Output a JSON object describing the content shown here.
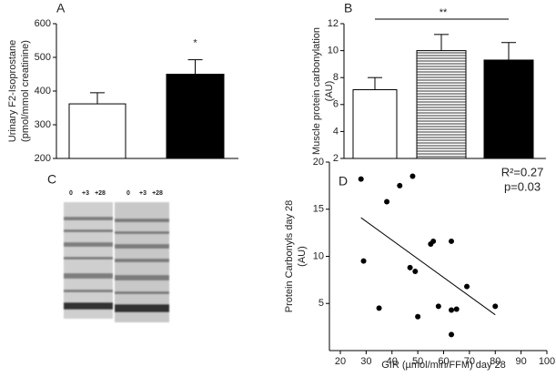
{
  "chart_data": [
    {
      "type": "bar",
      "panel_label": "A",
      "ylabel": [
        "Urinary F2-Isoprostane",
        "(pmol/mmol creatinine)"
      ],
      "categories": [
        null,
        null
      ],
      "values": [
        362,
        450
      ],
      "errors": [
        33,
        43
      ],
      "colors": [
        "#ffffff",
        "#000000"
      ],
      "patterns": [
        "none",
        "none"
      ],
      "significance": "*",
      "ylim": [
        200,
        600
      ],
      "yticks": [
        200,
        300,
        400,
        500,
        600
      ]
    },
    {
      "type": "bar",
      "panel_label": "B",
      "ylabel": [
        "Muscle protein carbonylation",
        "(AU)"
      ],
      "categories": [
        null,
        null,
        null
      ],
      "values": [
        7.1,
        10.0,
        9.3
      ],
      "errors": [
        0.9,
        1.2,
        1.3
      ],
      "colors": [
        "#ffffff",
        "#ffffff",
        "#000000"
      ],
      "patterns": [
        "none",
        "horizontal-lines",
        "none"
      ],
      "significance": "**",
      "ylim": [
        2,
        12
      ],
      "yticks": [
        2,
        4,
        6,
        8,
        10,
        12
      ]
    },
    {
      "type": "scatter",
      "panel_label": "D",
      "xlabel": "GIR (µmol/min/FFM) day 28",
      "ylabel": [
        "Protein Carbonyls day 28",
        "(AU)"
      ],
      "x": [
        28,
        29,
        35,
        38,
        43,
        47,
        48,
        49,
        50,
        55,
        56,
        58,
        63,
        63,
        63,
        65,
        69,
        80
      ],
      "y": [
        18.2,
        9.5,
        4.5,
        15.8,
        17.5,
        8.8,
        18.5,
        8.4,
        3.6,
        11.3,
        11.6,
        4.7,
        11.6,
        1.7,
        4.3,
        4.4,
        6.8,
        4.7
      ],
      "color": "#000000",
      "fit_line": {
        "x": [
          28,
          80
        ],
        "y": [
          14.1,
          3.8
        ]
      },
      "annotations": [
        "R²=0.27",
        "p=0.03"
      ],
      "xlim": [
        20,
        100
      ],
      "xticks": [
        20,
        30,
        40,
        50,
        60,
        70,
        80,
        90,
        100
      ],
      "ylim": [
        0,
        20
      ],
      "yticks": [
        5,
        10,
        15,
        20
      ]
    }
  ],
  "blot": {
    "panel_label": "C",
    "lane_labels": [
      "0",
      "+3",
      "+28",
      "0",
      "+3",
      "+28"
    ]
  }
}
